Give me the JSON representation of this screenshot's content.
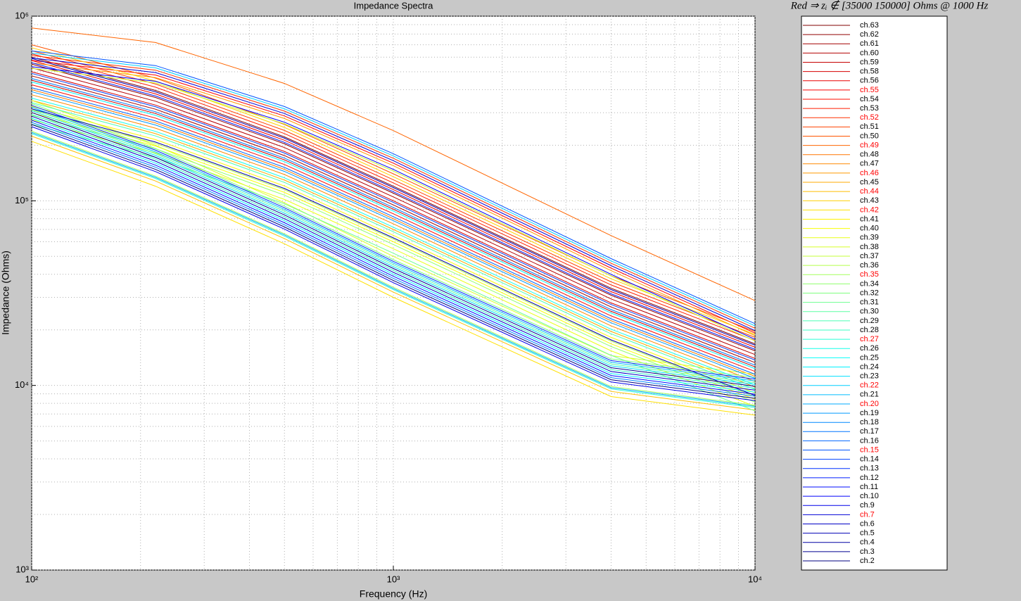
{
  "chart_data": {
    "type": "line",
    "title": "Impedance Spectra",
    "annotation": "Red ⇒ zᵢ ∉ [35000 150000] Ohms @ 1000 Hz",
    "x_label": "Frequency (Hz)",
    "y_label": "Impedance (Ohms)",
    "xscale": "log",
    "yscale": "log",
    "grid": true,
    "legend": "outside-right",
    "xlim": [
      100,
      10000
    ],
    "ylim": [
      1000,
      1000000
    ],
    "xticks": [
      {
        "value": 100,
        "label": "10²"
      },
      {
        "value": 1000,
        "label": "10³"
      },
      {
        "value": 10000,
        "label": "10⁴"
      }
    ],
    "yticks": [
      {
        "value": 1000,
        "label": "10³"
      },
      {
        "value": 10000,
        "label": "10⁴"
      },
      {
        "value": 100000,
        "label": "10⁵"
      },
      {
        "value": 1000000,
        "label": "10⁶"
      }
    ],
    "xminorticks": [
      200,
      300,
      400,
      500,
      600,
      700,
      800,
      900,
      2000,
      3000,
      4000,
      5000,
      6000,
      7000,
      8000,
      9000
    ],
    "yminorticks": [
      2000,
      3000,
      4000,
      5000,
      6000,
      7000,
      8000,
      9000,
      20000,
      30000,
      40000,
      50000,
      60000,
      70000,
      80000,
      90000,
      200000,
      300000,
      400000,
      500000,
      600000,
      700000,
      800000,
      900000
    ],
    "x": [
      100,
      220,
      500,
      1000,
      4000,
      10000
    ],
    "series": [
      {
        "name": "ch.63",
        "color": "#800000",
        "legend_text_color": "#000000",
        "values": [
          600000,
          396000,
          222000,
          120000,
          33600,
          16800
        ]
      },
      {
        "name": "ch.62",
        "color": "#910000",
        "legend_text_color": "#000000",
        "values": [
          550000,
          363000,
          203500,
          110000,
          30800,
          15400
        ]
      },
      {
        "name": "ch.61",
        "color": "#a30000",
        "legend_text_color": "#000000",
        "values": [
          475000,
          313500,
          175750,
          95000,
          26600,
          13300
        ]
      },
      {
        "name": "ch.60",
        "color": "#b40000",
        "legend_text_color": "#000000",
        "values": [
          525000,
          346500,
          194250,
          105000,
          29400,
          14700
        ]
      },
      {
        "name": "ch.59",
        "color": "#c60000",
        "legend_text_color": "#000000",
        "values": [
          450000,
          297000,
          166500,
          90000,
          25200,
          12600
        ]
      },
      {
        "name": "ch.58",
        "color": "#d70000",
        "legend_text_color": "#000000",
        "values": [
          500000,
          330000,
          185000,
          100000,
          28000,
          14000
        ]
      },
      {
        "name": "ch.56",
        "color": "#e90000",
        "legend_text_color": "#000000",
        "values": [
          575000,
          379500,
          212750,
          115000,
          32200,
          16100
        ]
      },
      {
        "name": "ch.55",
        "color": "#fa0000",
        "legend_text_color": "#ff0000",
        "values": [
          576000,
          480000,
          288000,
          160000,
          43200,
          19200
        ]
      },
      {
        "name": "ch.54",
        "color": "#ff0d00",
        "legend_text_color": "#000000",
        "values": [
          425000,
          280500,
          157250,
          85000,
          23800,
          11900
        ]
      },
      {
        "name": "ch.53",
        "color": "#ff1f00",
        "legend_text_color": "#000000",
        "values": [
          625000,
          412500,
          231250,
          125000,
          35000,
          17500
        ]
      },
      {
        "name": "ch.52",
        "color": "#ff3000",
        "legend_text_color": "#ff0000",
        "values": [
          612000,
          510000,
          306000,
          170000,
          45900,
          20400
        ]
      },
      {
        "name": "ch.51",
        "color": "#ff4200",
        "legend_text_color": "#000000",
        "values": [
          650000,
          429000,
          240500,
          130000,
          36400,
          18200
        ]
      },
      {
        "name": "ch.50",
        "color": "#ff5400",
        "legend_text_color": "#000000",
        "values": [
          700000,
          462000,
          259000,
          140000,
          39200,
          19600
        ]
      },
      {
        "name": "ch.49",
        "color": "#ff6500",
        "legend_text_color": "#ff0000",
        "values": [
          864000,
          720000,
          432000,
          240000,
          64800,
          28800
        ]
      },
      {
        "name": "ch.48",
        "color": "#ff7700",
        "legend_text_color": "#000000",
        "values": [
          400000,
          264000,
          148000,
          80000,
          22400,
          11200
        ]
      },
      {
        "name": "ch.47",
        "color": "#ff8800",
        "legend_text_color": "#000000",
        "values": [
          375000,
          247500,
          138750,
          75000,
          21000,
          10500
        ]
      },
      {
        "name": "ch.46",
        "color": "#ff9a00",
        "legend_text_color": "#ff0000",
        "values": [
          558000,
          465000,
          279000,
          155000,
          41850,
          18600
        ]
      },
      {
        "name": "ch.45",
        "color": "#ffab00",
        "legend_text_color": "#000000",
        "values": [
          350000,
          231000,
          129500,
          70000,
          19600,
          9800
        ]
      },
      {
        "name": "ch.44",
        "color": "#ffbd00",
        "legend_text_color": "#ff0000",
        "values": [
          224000,
          128000,
          62400,
          32000,
          9280,
          7360
        ]
      },
      {
        "name": "ch.43",
        "color": "#ffcf00",
        "legend_text_color": "#000000",
        "values": [
          675000,
          445500,
          249750,
          135000,
          37800,
          18900
        ]
      },
      {
        "name": "ch.42",
        "color": "#ffe000",
        "legend_text_color": "#ff0000",
        "values": [
          210000,
          120000,
          58500,
          30000,
          8700,
          6900
        ]
      },
      {
        "name": "ch.41",
        "color": "#fff200",
        "legend_text_color": "#000000",
        "values": [
          325000,
          214500,
          120250,
          65000,
          18200,
          9100
        ]
      },
      {
        "name": "ch.40",
        "color": "#faff04",
        "legend_text_color": "#000000",
        "values": [
          300000,
          198000,
          111000,
          60000,
          16800,
          8400
        ]
      },
      {
        "name": "ch.39",
        "color": "#e9ff16",
        "legend_text_color": "#000000",
        "values": [
          275000,
          181500,
          101750,
          55000,
          15400,
          7700
        ]
      },
      {
        "name": "ch.38",
        "color": "#d7ff28",
        "legend_text_color": "#000000",
        "values": [
          350000,
          200000,
          97500,
          50000,
          14500,
          11500
        ]
      },
      {
        "name": "ch.37",
        "color": "#c6ff39",
        "legend_text_color": "#000000",
        "values": [
          522000,
          435000,
          261000,
          145000,
          39150,
          17400
        ]
      },
      {
        "name": "ch.36",
        "color": "#b4ff4b",
        "legend_text_color": "#000000",
        "values": [
          310000,
          204600,
          114700,
          62000,
          17360,
          8680
        ]
      },
      {
        "name": "ch.35",
        "color": "#a3ff5c",
        "legend_text_color": "#ff0000",
        "values": [
          238000,
          136000,
          66300,
          34000,
          9860,
          7820
        ]
      },
      {
        "name": "ch.34",
        "color": "#91ff6e",
        "legend_text_color": "#000000",
        "values": [
          290000,
          191400,
          107300,
          58000,
          16240,
          8120
        ]
      },
      {
        "name": "ch.32",
        "color": "#80ff80",
        "legend_text_color": "#000000",
        "values": [
          336000,
          192000,
          93600,
          48000,
          13920,
          11040
        ]
      },
      {
        "name": "ch.31",
        "color": "#6eff91",
        "legend_text_color": "#000000",
        "values": [
          260000,
          171600,
          96200,
          52000,
          14560,
          7280
        ]
      },
      {
        "name": "ch.30",
        "color": "#5cffa3",
        "legend_text_color": "#000000",
        "values": [
          315000,
          180000,
          87750,
          45000,
          13050,
          10350
        ]
      },
      {
        "name": "ch.29",
        "color": "#4bffb4",
        "legend_text_color": "#000000",
        "values": [
          340000,
          224400,
          125800,
          68000,
          19040,
          9520
        ]
      },
      {
        "name": "ch.28",
        "color": "#39ffc6",
        "legend_text_color": "#000000",
        "values": [
          294000,
          168000,
          81900,
          42000,
          12180,
          9660
        ]
      },
      {
        "name": "ch.27",
        "color": "#28ffd7",
        "legend_text_color": "#ff0000",
        "values": [
          231000,
          132000,
          64350,
          33000,
          9570,
          7590
        ]
      },
      {
        "name": "ch.26",
        "color": "#16ffe9",
        "legend_text_color": "#000000",
        "values": [
          360000,
          237600,
          133200,
          72000,
          20160,
          10080
        ]
      },
      {
        "name": "ch.25",
        "color": "#04fffa",
        "legend_text_color": "#000000",
        "values": [
          280000,
          160000,
          78000,
          40000,
          11600,
          9200
        ]
      },
      {
        "name": "ch.24",
        "color": "#00f2ff",
        "legend_text_color": "#000000",
        "values": [
          440000,
          290400,
          162800,
          88000,
          24640,
          12320
        ]
      },
      {
        "name": "ch.23",
        "color": "#00e0ff",
        "legend_text_color": "#000000",
        "values": [
          308000,
          176000,
          85800,
          44000,
          12760,
          10120
        ]
      },
      {
        "name": "ch.22",
        "color": "#00cfff",
        "legend_text_color": "#ff0000",
        "values": [
          630000,
          525000,
          315000,
          175000,
          47250,
          21000
        ]
      },
      {
        "name": "ch.21",
        "color": "#00bdff",
        "legend_text_color": "#000000",
        "values": [
          322000,
          184000,
          89700,
          46000,
          13340,
          10580
        ]
      },
      {
        "name": "ch.20",
        "color": "#00abff",
        "legend_text_color": "#ff0000",
        "values": [
          234500,
          134000,
          65325,
          33500,
          9715,
          7705
        ]
      },
      {
        "name": "ch.19",
        "color": "#009aff",
        "legend_text_color": "#000000",
        "values": [
          390000,
          257400,
          144300,
          78000,
          21840,
          10920
        ]
      },
      {
        "name": "ch.18",
        "color": "#0088ff",
        "legend_text_color": "#000000",
        "values": [
          266000,
          152000,
          74100,
          38000,
          11020,
          8740
        ]
      },
      {
        "name": "ch.17",
        "color": "#0077ff",
        "legend_text_color": "#000000",
        "values": [
          460000,
          303600,
          170200,
          92000,
          25760,
          12880
        ]
      },
      {
        "name": "ch.16",
        "color": "#0065ff",
        "legend_text_color": "#000000",
        "values": [
          410000,
          270600,
          151700,
          82000,
          22960,
          11480
        ]
      },
      {
        "name": "ch.15",
        "color": "#0054ff",
        "legend_text_color": "#ff0000",
        "values": [
          648000,
          540000,
          324000,
          180000,
          48600,
          21600
        ]
      },
      {
        "name": "ch.14",
        "color": "#0042ff",
        "legend_text_color": "#000000",
        "values": [
          490000,
          323400,
          181300,
          98000,
          27440,
          13720
        ]
      },
      {
        "name": "ch.13",
        "color": "#0030ff",
        "legend_text_color": "#000000",
        "values": [
          329000,
          188000,
          91650,
          47000,
          13630,
          10810
        ]
      },
      {
        "name": "ch.12",
        "color": "#001fff",
        "legend_text_color": "#000000",
        "values": [
          560000,
          369600,
          207200,
          112000,
          31360,
          15680
        ]
      },
      {
        "name": "ch.11",
        "color": "#000dff",
        "legend_text_color": "#000000",
        "values": [
          273000,
          156000,
          76050,
          39000,
          11310,
          8970
        ]
      },
      {
        "name": "ch.10",
        "color": "#0000fa",
        "legend_text_color": "#000000",
        "values": [
          532800,
          444000,
          266400,
          148000,
          39960,
          17760
        ]
      },
      {
        "name": "ch.9",
        "color": "#0000e9",
        "legend_text_color": "#000000",
        "values": [
          252000,
          144000,
          70200,
          36000,
          10440,
          8280
        ]
      },
      {
        "name": "ch.7",
        "color": "#0000d7",
        "legend_text_color": "#ff0000",
        "values": [
          594000,
          495000,
          297000,
          165000,
          44550,
          19800
        ]
      },
      {
        "name": "ch.6",
        "color": "#0000c6",
        "legend_text_color": "#000000",
        "values": [
          287000,
          164000,
          79950,
          41000,
          11890,
          9430
        ]
      },
      {
        "name": "ch.5",
        "color": "#0000b4",
        "legend_text_color": "#000000",
        "values": [
          590000,
          389400,
          218300,
          118000,
          33040,
          16520
        ]
      },
      {
        "name": "ch.4",
        "color": "#0000a3",
        "legend_text_color": "#000000",
        "values": [
          315000,
          207900,
          116550,
          63000,
          17640,
          8820
        ]
      },
      {
        "name": "ch.3",
        "color": "#000091",
        "legend_text_color": "#000000",
        "values": [
          301000,
          172000,
          83850,
          43000,
          12470,
          9890
        ]
      },
      {
        "name": "ch.2",
        "color": "#000080",
        "legend_text_color": "#000000",
        "values": [
          259000,
          148000,
          72150,
          37000,
          10730,
          8510
        ]
      }
    ]
  }
}
